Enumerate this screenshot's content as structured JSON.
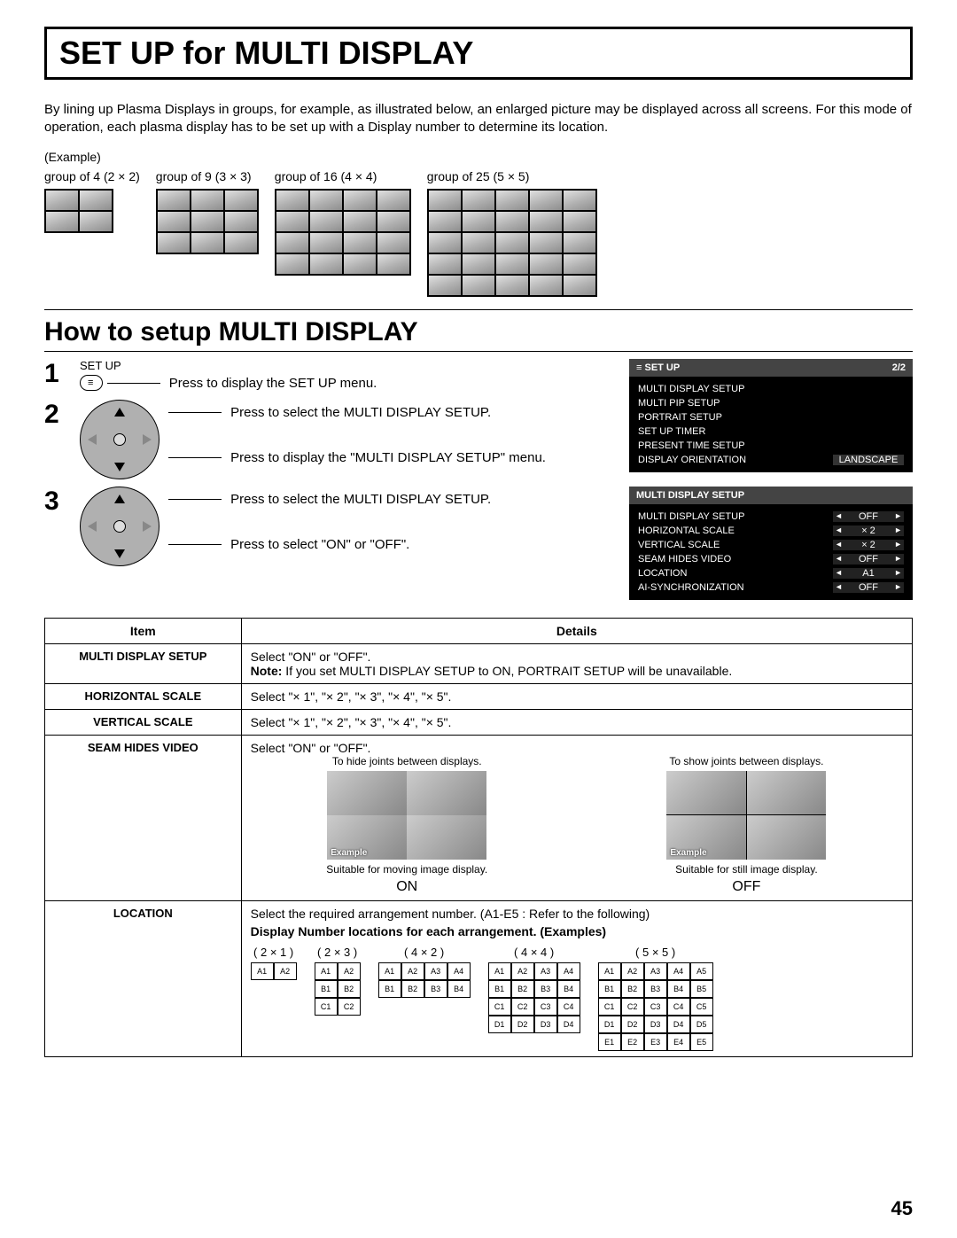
{
  "title": "SET UP for MULTI DISPLAY",
  "intro": "By lining up Plasma Displays in groups, for example, as illustrated below, an enlarged picture may be displayed across all screens. For this mode of operation, each plasma display has to be set up with a Display number to determine its location.",
  "example_label": "(Example)",
  "examples": [
    {
      "label": "group of 4 (2 × 2)",
      "cols": 2,
      "rows": 2,
      "tile": 40
    },
    {
      "label": "group of 9 (3 × 3)",
      "cols": 3,
      "rows": 3,
      "tile": 40
    },
    {
      "label": "group of 16 (4 × 4)",
      "cols": 4,
      "rows": 4,
      "tile": 40
    },
    {
      "label": "group of 25 (5 × 5)",
      "cols": 5,
      "rows": 5,
      "tile": 40
    }
  ],
  "section2_title": "How to setup MULTI DISPLAY",
  "steps": {
    "s1_label": "SET UP",
    "s1_text": "Press to display the SET UP menu.",
    "s2_text1": "Press to select the MULTI DISPLAY SETUP.",
    "s2_text2": "Press to display the \"MULTI DISPLAY SETUP\" menu.",
    "s3_text1": "Press to select the MULTI DISPLAY SETUP.",
    "s3_text2": "Press to select \"ON\" or \"OFF\"."
  },
  "osd1": {
    "title": "SET UP",
    "page": "2/2",
    "items": [
      "MULTI DISPLAY SETUP",
      "MULTI PIP SETUP",
      "PORTRAIT SETUP",
      "SET UP TIMER",
      "PRESENT TIME SETUP"
    ],
    "last": {
      "label": "DISPLAY ORIENTATION",
      "value": "LANDSCAPE"
    }
  },
  "osd2": {
    "title": "MULTI DISPLAY SETUP",
    "rows": [
      {
        "label": "MULTI DISPLAY SETUP",
        "value": "OFF"
      },
      {
        "label": "HORIZONTAL SCALE",
        "value": "× 2"
      },
      {
        "label": "VERTICAL SCALE",
        "value": "× 2"
      },
      {
        "label": "SEAM HIDES VIDEO",
        "value": "OFF"
      },
      {
        "label": "LOCATION",
        "value": "A1"
      },
      {
        "label": "AI-SYNCHRONIZATION",
        "value": "OFF"
      }
    ]
  },
  "table": {
    "head_item": "Item",
    "head_details": "Details",
    "rows": [
      {
        "item": "MULTI DISPLAY SETUP",
        "details_text": "Select \"ON\" or \"OFF\".",
        "note_prefix": "Note:",
        "note": " If you set MULTI DISPLAY SETUP to ON, PORTRAIT SETUP will be unavailable."
      },
      {
        "item": "HORIZONTAL SCALE",
        "details_text": "Select \"× 1\", \"× 2\", \"× 3\", \"× 4\", \"× 5\"."
      },
      {
        "item": "VERTICAL SCALE",
        "details_text": "Select \"× 1\", \"× 2\", \"× 3\", \"× 4\", \"× 5\"."
      }
    ],
    "seam": {
      "item": "SEAM HIDES VIDEO",
      "text": "Select \"ON\" or \"OFF\".",
      "hide": "To hide joints between displays.",
      "show": "To show joints between displays.",
      "suit_on": "Suitable for moving image display.",
      "suit_off": "Suitable for still image display.",
      "ex": "Example",
      "on": "ON",
      "off": "OFF"
    },
    "loc": {
      "item": "LOCATION",
      "text": "Select the required arrangement number. (A1-E5 : Refer to the following)",
      "heading": "Display Number locations for each arrangement. (Examples)",
      "grids": [
        {
          "label": "( 2 × 1 )",
          "cols": 2,
          "rows": 1
        },
        {
          "label": "( 2 × 3 )",
          "cols": 2,
          "rows": 3
        },
        {
          "label": "( 4 × 2 )",
          "cols": 4,
          "rows": 2
        },
        {
          "label": "( 4 × 4 )",
          "cols": 4,
          "rows": 4
        },
        {
          "label": "( 5 × 5 )",
          "cols": 5,
          "rows": 5
        }
      ]
    }
  },
  "page_number": "45"
}
